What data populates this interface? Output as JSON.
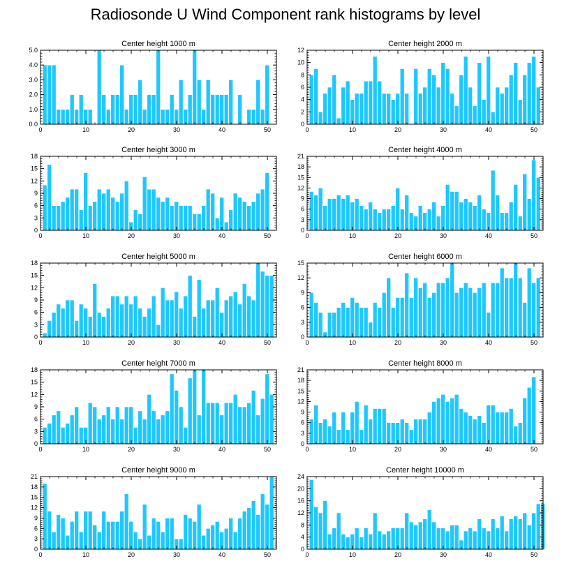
{
  "title": "Radiosonde U Wind Component rank histograms by level",
  "colors": {
    "bar": "#1EC8FF",
    "bar_edge": "#ffffff",
    "axis": "#000000"
  },
  "chart_data": [
    {
      "type": "bar",
      "title": "Center height 1000 m",
      "xlim": [
        0,
        52
      ],
      "xticks": [
        0,
        10,
        20,
        30,
        40,
        50
      ],
      "ylim": [
        0,
        5
      ],
      "yticks": [
        "0.0",
        "1.0",
        "2.0",
        "3.0",
        "4.0",
        "5.0"
      ],
      "values": [
        4,
        4,
        4,
        1,
        1,
        1,
        2,
        1,
        2,
        1,
        1,
        0,
        5,
        2,
        1,
        2,
        2,
        4,
        1,
        2,
        2,
        3,
        1,
        2,
        2,
        5,
        1,
        1,
        2,
        1,
        3,
        1,
        2,
        5,
        3,
        1,
        3,
        2,
        2,
        2,
        2,
        3,
        0,
        2,
        0,
        1,
        1,
        3,
        1,
        4
      ]
    },
    {
      "type": "bar",
      "title": "Center height 2000 m",
      "xlim": [
        0,
        52
      ],
      "xticks": [
        0,
        10,
        20,
        30,
        40,
        50
      ],
      "ylim": [
        0,
        12
      ],
      "yticks": [
        "0",
        "2",
        "4",
        "6",
        "8",
        "10",
        "12"
      ],
      "values": [
        8,
        9,
        2,
        5,
        6,
        8,
        1,
        6,
        7,
        4,
        5,
        5,
        7,
        7,
        11,
        7,
        5,
        5,
        4,
        5,
        9,
        5,
        0,
        9,
        5,
        6,
        9,
        8,
        6,
        10,
        9,
        5,
        3,
        8,
        11,
        6,
        3,
        10,
        4,
        11,
        2,
        6,
        5,
        6,
        8,
        10,
        4,
        8,
        10,
        11,
        6
      ]
    },
    {
      "type": "bar",
      "title": "Center height 3000 m",
      "xlim": [
        0,
        52
      ],
      "xticks": [
        0,
        10,
        20,
        30,
        40,
        50
      ],
      "ylim": [
        0,
        18
      ],
      "yticks": [
        "0",
        "3",
        "6",
        "9",
        "12",
        "15",
        "18"
      ],
      "values": [
        11,
        16,
        6,
        6,
        7,
        8,
        10,
        10,
        5,
        14,
        6,
        7,
        10,
        9,
        10,
        8,
        7,
        9,
        12,
        2,
        5,
        4,
        13,
        10,
        10,
        8,
        7,
        8,
        6,
        7,
        6,
        6,
        6,
        4,
        4,
        6,
        10,
        9,
        3,
        8,
        2,
        5,
        9,
        8,
        7,
        6,
        7,
        9,
        10,
        14
      ]
    },
    {
      "type": "bar",
      "title": "Center height 4000 m",
      "xlim": [
        0,
        52
      ],
      "xticks": [
        0,
        10,
        20,
        30,
        40,
        50
      ],
      "ylim": [
        0,
        21
      ],
      "yticks": [
        "0",
        "3",
        "6",
        "9",
        "12",
        "15",
        "18",
        "21"
      ],
      "values": [
        11,
        10,
        12,
        7,
        9,
        9,
        10,
        9,
        10,
        8,
        9,
        7,
        6,
        8,
        6,
        5,
        6,
        6,
        7,
        12,
        6,
        10,
        5,
        4,
        7,
        5,
        6,
        8,
        4,
        7,
        13,
        11,
        11,
        8,
        9,
        8,
        7,
        10,
        6,
        5,
        17,
        10,
        5,
        5,
        8,
        13,
        4,
        16,
        9,
        20,
        15
      ]
    },
    {
      "type": "bar",
      "title": "Center height 5000 m",
      "xlim": [
        0,
        52
      ],
      "xticks": [
        0,
        10,
        20,
        30,
        40,
        50
      ],
      "ylim": [
        0,
        18
      ],
      "yticks": [
        "0",
        "3",
        "6",
        "9",
        "12",
        "15",
        "18"
      ],
      "values": [
        1,
        4,
        6,
        8,
        7,
        9,
        9,
        4,
        8,
        7,
        5,
        13,
        6,
        5,
        7,
        10,
        10,
        8,
        10,
        8,
        10,
        7,
        5,
        7,
        10,
        3,
        12,
        9,
        9,
        11,
        7,
        10,
        15,
        5,
        14,
        7,
        9,
        9,
        12,
        6,
        9,
        10,
        11,
        8,
        13,
        10,
        9,
        18,
        16,
        15,
        15
      ]
    },
    {
      "type": "bar",
      "title": "Center height 6000 m",
      "xlim": [
        0,
        52
      ],
      "xticks": [
        0,
        10,
        20,
        30,
        40,
        50
      ],
      "ylim": [
        0,
        15
      ],
      "yticks": [
        "0",
        "3",
        "6",
        "9",
        "12",
        "15"
      ],
      "values": [
        9,
        7,
        5,
        1,
        5,
        5,
        6,
        7,
        6,
        8,
        7,
        6,
        6,
        3,
        7,
        6,
        9,
        12,
        6,
        8,
        8,
        13,
        8,
        12,
        10,
        11,
        8,
        9,
        11,
        11,
        12,
        15,
        9,
        10,
        11,
        10,
        9,
        10,
        11,
        5,
        11,
        11,
        14,
        12,
        12,
        15,
        12,
        7,
        14,
        11,
        12
      ]
    },
    {
      "type": "bar",
      "title": "Center height 7000 m",
      "xlim": [
        0,
        52
      ],
      "xticks": [
        0,
        10,
        20,
        30,
        40,
        50
      ],
      "ylim": [
        0,
        18
      ],
      "yticks": [
        "0",
        "3",
        "6",
        "9",
        "12",
        "15",
        "18"
      ],
      "values": [
        4,
        5,
        7,
        8,
        4,
        5,
        7,
        9,
        4,
        4,
        10,
        9,
        6,
        7,
        9,
        6,
        9,
        6,
        9,
        9,
        4,
        8,
        6,
        12,
        8,
        6,
        7,
        8,
        17,
        13,
        9,
        4,
        16,
        18,
        7,
        18,
        10,
        10,
        10,
        7,
        10,
        10,
        12,
        9,
        9,
        10,
        13,
        7,
        11,
        17,
        12
      ]
    },
    {
      "type": "bar",
      "title": "Center height 8000 m",
      "xlim": [
        0,
        52
      ],
      "xticks": [
        0,
        10,
        20,
        30,
        40,
        50
      ],
      "ylim": [
        0,
        21
      ],
      "yticks": [
        "0",
        "3",
        "6",
        "9",
        "12",
        "15",
        "18",
        "21"
      ],
      "values": [
        7,
        11,
        6,
        7,
        5,
        9,
        4,
        9,
        4,
        9,
        12,
        4,
        11,
        7,
        10,
        10,
        10,
        6,
        6,
        6,
        7,
        6,
        4,
        7,
        7,
        7,
        9,
        12,
        13,
        14,
        12,
        13,
        14,
        10,
        9,
        8,
        7,
        8,
        6,
        11,
        11,
        9,
        9,
        9,
        10,
        5,
        6,
        13,
        16,
        19
      ]
    },
    {
      "type": "bar",
      "title": "Center height 9000 m",
      "xlim": [
        0,
        52
      ],
      "xticks": [
        0,
        10,
        20,
        30,
        40,
        50
      ],
      "ylim": [
        0,
        21
      ],
      "yticks": [
        "0",
        "3",
        "6",
        "9",
        "12",
        "15",
        "18",
        "21"
      ],
      "values": [
        19,
        11,
        5,
        10,
        9,
        4,
        8,
        11,
        5,
        11,
        11,
        7,
        5,
        11,
        8,
        8,
        8,
        11,
        16,
        8,
        5,
        3,
        13,
        4,
        9,
        8,
        5,
        9,
        9,
        3,
        3,
        10,
        9,
        8,
        13,
        4,
        6,
        7,
        8,
        5,
        6,
        9,
        5,
        9,
        11,
        12,
        14,
        10,
        16,
        13,
        21
      ]
    },
    {
      "type": "bar",
      "title": "Center height 10000 m",
      "xlim": [
        0,
        52
      ],
      "xticks": [
        0,
        10,
        20,
        30,
        40,
        50
      ],
      "ylim": [
        0,
        24
      ],
      "yticks": [
        "0",
        "4",
        "8",
        "12",
        "16",
        "20",
        "24"
      ],
      "values": [
        23,
        14,
        12,
        16,
        5,
        7,
        12,
        5,
        4,
        5,
        7,
        4,
        7,
        5,
        12,
        6,
        5,
        6,
        7,
        7,
        7,
        12,
        9,
        8,
        9,
        10,
        13,
        9,
        7,
        7,
        6,
        8,
        8,
        3,
        6,
        7,
        6,
        10,
        7,
        6,
        10,
        7,
        11,
        6,
        10,
        11,
        10,
        12,
        8,
        12,
        15,
        15
      ]
    }
  ]
}
